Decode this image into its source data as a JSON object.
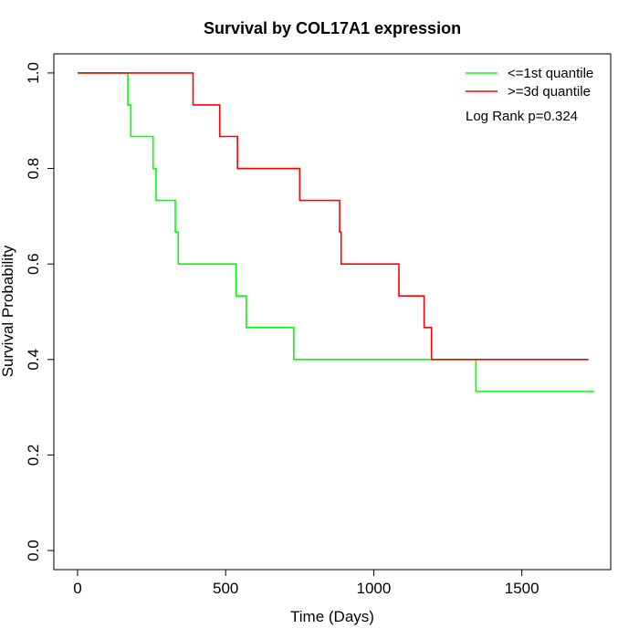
{
  "chart_data": {
    "type": "line",
    "title": "Survival by COL17A1 expression",
    "xlabel": "Time (Days)",
    "ylabel": "Survival Probability",
    "xlim": [
      -80,
      1800
    ],
    "ylim": [
      -0.04,
      1.04
    ],
    "xticks": [
      0,
      500,
      1000,
      1500
    ],
    "yticks": [
      0.0,
      0.2,
      0.4,
      0.6,
      0.8,
      1.0
    ],
    "xtick_labels": [
      "0",
      "500",
      "1000",
      "1500"
    ],
    "ytick_labels": [
      "0.0",
      "0.2",
      "0.4",
      "0.6",
      "0.8",
      "1.0"
    ],
    "grid": false,
    "legend_position": "top-right",
    "annotation": "Log Rank p=0.324",
    "series": [
      {
        "name": "<=1st quantile",
        "color": "#00ff00",
        "step": true,
        "x": [
          0,
          170,
          180,
          255,
          265,
          330,
          340,
          535,
          570,
          730,
          1345,
          1745
        ],
        "y": [
          1.0,
          0.933,
          0.867,
          0.8,
          0.733,
          0.667,
          0.6,
          0.533,
          0.467,
          0.4,
          0.333,
          0.333
        ]
      },
      {
        "name": ">=3d quantile",
        "color": "#ff0000",
        "step": true,
        "x": [
          0,
          390,
          480,
          540,
          750,
          885,
          890,
          1085,
          1170,
          1195,
          1725
        ],
        "y": [
          1.0,
          0.933,
          0.867,
          0.8,
          0.733,
          0.667,
          0.6,
          0.533,
          0.467,
          0.4,
          0.4
        ]
      }
    ]
  }
}
